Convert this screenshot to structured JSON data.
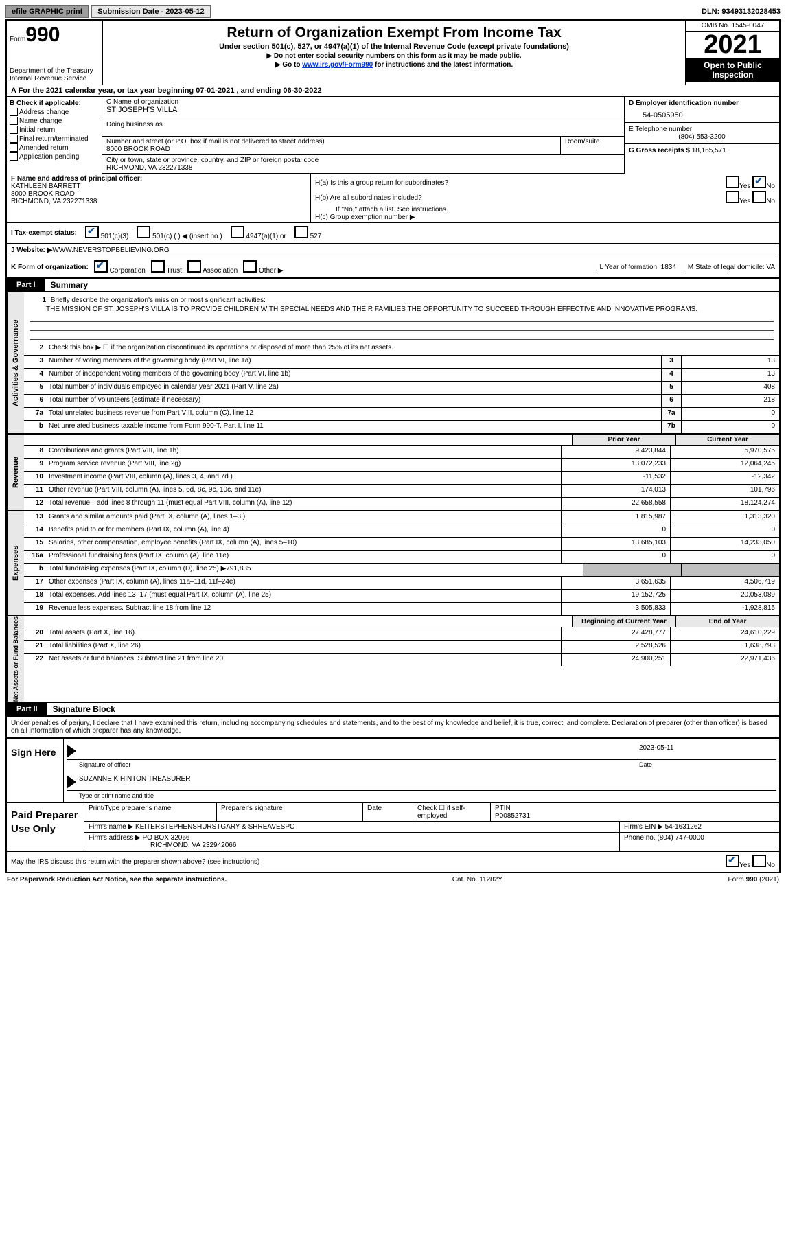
{
  "toolbar": {
    "efile": "efile GRAPHIC print",
    "submission_label": "Submission Date - 2023-05-12",
    "dln": "DLN: 93493132028453"
  },
  "header": {
    "form_prefix": "Form",
    "form_number": "990",
    "dept": "Department of the Treasury\nInternal Revenue Service",
    "title": "Return of Organization Exempt From Income Tax",
    "subtitle": "Under section 501(c), 527, or 4947(a)(1) of the Internal Revenue Code (except private foundations)",
    "instr1": "▶ Do not enter social security numbers on this form as it may be made public.",
    "instr2_pre": "▶ Go to ",
    "instr2_link": "www.irs.gov/Form990",
    "instr2_post": " for instructions and the latest information.",
    "omb": "OMB No. 1545-0047",
    "year": "2021",
    "open_pub": "Open to Public Inspection"
  },
  "row_a": "A For the 2021 calendar year, or tax year beginning 07-01-2021    , and ending 06-30-2022",
  "col_b": {
    "title": "B Check if applicable:",
    "items": [
      "Address change",
      "Name change",
      "Initial return",
      "Final return/terminated",
      "Amended return",
      "Application pending"
    ]
  },
  "col_c": {
    "name_label": "C Name of organization",
    "name": "ST JOSEPH'S VILLA",
    "dba_label": "Doing business as",
    "dba": "",
    "addr_label": "Number and street (or P.O. box if mail is not delivered to street address)",
    "addr": "8000 BROOK ROAD",
    "suite_label": "Room/suite",
    "city_label": "City or town, state or province, country, and ZIP or foreign postal code",
    "city": "RICHMOND, VA  232271338"
  },
  "col_d": {
    "ein_label": "D Employer identification number",
    "ein": "54-0505950",
    "tel_label": "E Telephone number",
    "tel": "(804) 553-3200",
    "gross_label": "G Gross receipts $ ",
    "gross": "18,165,571"
  },
  "row_f": {
    "label": "F Name and address of principal officer:",
    "name": "KATHLEEN BARRETT",
    "addr1": "8000 BROOK ROAD",
    "addr2": "RICHMOND, VA  232271338"
  },
  "row_h": {
    "ha": "H(a)  Is this a group return for subordinates?",
    "hb": "H(b)  Are all subordinates included?",
    "hb_note": "If \"No,\" attach a list. See instructions.",
    "hc": "H(c)  Group exemption number ▶",
    "yes": "Yes",
    "no": "No"
  },
  "row_i": {
    "label": "I   Tax-exempt status:",
    "opt1": "501(c)(3)",
    "opt2": "501(c) (  ) ◀ (insert no.)",
    "opt3": "4947(a)(1) or",
    "opt4": "527"
  },
  "row_j": {
    "label": "J   Website: ▶  ",
    "val": "WWW.NEVERSTOPBELIEVING.ORG"
  },
  "row_k": {
    "label": "K Form of organization:",
    "opts": [
      "Corporation",
      "Trust",
      "Association",
      "Other ▶"
    ],
    "l": "L Year of formation: 1834",
    "m": "M State of legal domicile: VA"
  },
  "part1": {
    "label": "Part I",
    "title": "Summary"
  },
  "mission": {
    "q": "Briefly describe the organization's mission or most significant activities:",
    "text": "THE MISSION OF ST. JOSEPH'S VILLA IS TO PROVIDE CHILDREN WITH SPECIAL NEEDS AND THEIR FAMILIES THE OPPORTUNITY TO SUCCEED THROUGH EFFECTIVE AND INNOVATIVE PROGRAMS."
  },
  "lines_gov": [
    {
      "n": "2",
      "desc": "Check this box ▶ ☐  if the organization discontinued its operations or disposed of more than 25% of its net assets."
    },
    {
      "n": "3",
      "desc": "Number of voting members of the governing body (Part VI, line 1a)",
      "box": "3",
      "val": "13"
    },
    {
      "n": "4",
      "desc": "Number of independent voting members of the governing body (Part VI, line 1b)",
      "box": "4",
      "val": "13"
    },
    {
      "n": "5",
      "desc": "Total number of individuals employed in calendar year 2021 (Part V, line 2a)",
      "box": "5",
      "val": "408"
    },
    {
      "n": "6",
      "desc": "Total number of volunteers (estimate if necessary)",
      "box": "6",
      "val": "218"
    },
    {
      "n": "7a",
      "desc": "Total unrelated business revenue from Part VIII, column (C), line 12",
      "box": "7a",
      "val": "0"
    },
    {
      "n": "b",
      "desc": "Net unrelated business taxable income from Form 990-T, Part I, line 11",
      "box": "7b",
      "val": "0"
    }
  ],
  "hdr_prior": "Prior Year",
  "hdr_curr": "Current Year",
  "lines_rev": [
    {
      "n": "8",
      "desc": "Contributions and grants (Part VIII, line 1h)",
      "p": "9,423,844",
      "c": "5,970,575"
    },
    {
      "n": "9",
      "desc": "Program service revenue (Part VIII, line 2g)",
      "p": "13,072,233",
      "c": "12,064,245"
    },
    {
      "n": "10",
      "desc": "Investment income (Part VIII, column (A), lines 3, 4, and 7d )",
      "p": "-11,532",
      "c": "-12,342"
    },
    {
      "n": "11",
      "desc": "Other revenue (Part VIII, column (A), lines 5, 6d, 8c, 9c, 10c, and 11e)",
      "p": "174,013",
      "c": "101,796"
    },
    {
      "n": "12",
      "desc": "Total revenue—add lines 8 through 11 (must equal Part VIII, column (A), line 12)",
      "p": "22,658,558",
      "c": "18,124,274"
    }
  ],
  "lines_exp": [
    {
      "n": "13",
      "desc": "Grants and similar amounts paid (Part IX, column (A), lines 1–3 )",
      "p": "1,815,987",
      "c": "1,313,320"
    },
    {
      "n": "14",
      "desc": "Benefits paid to or for members (Part IX, column (A), line 4)",
      "p": "0",
      "c": "0"
    },
    {
      "n": "15",
      "desc": "Salaries, other compensation, employee benefits (Part IX, column (A), lines 5–10)",
      "p": "13,685,103",
      "c": "14,233,050"
    },
    {
      "n": "16a",
      "desc": "Professional fundraising fees (Part IX, column (A), line 11e)",
      "p": "0",
      "c": "0"
    },
    {
      "n": "b",
      "desc": "Total fundraising expenses (Part IX, column (D), line 25) ▶791,835",
      "grey": true
    },
    {
      "n": "17",
      "desc": "Other expenses (Part IX, column (A), lines 11a–11d, 11f–24e)",
      "p": "3,651,635",
      "c": "4,506,719"
    },
    {
      "n": "18",
      "desc": "Total expenses. Add lines 13–17 (must equal Part IX, column (A), line 25)",
      "p": "19,152,725",
      "c": "20,053,089"
    },
    {
      "n": "19",
      "desc": "Revenue less expenses. Subtract line 18 from line 12",
      "p": "3,505,833",
      "c": "-1,928,815"
    }
  ],
  "hdr_beg": "Beginning of Current Year",
  "hdr_end": "End of Year",
  "lines_net": [
    {
      "n": "20",
      "desc": "Total assets (Part X, line 16)",
      "p": "27,428,777",
      "c": "24,610,229"
    },
    {
      "n": "21",
      "desc": "Total liabilities (Part X, line 26)",
      "p": "2,528,526",
      "c": "1,638,793"
    },
    {
      "n": "22",
      "desc": "Net assets or fund balances. Subtract line 21 from line 20",
      "p": "24,900,251",
      "c": "22,971,436"
    }
  ],
  "side_labels": {
    "gov": "Activities & Governance",
    "rev": "Revenue",
    "exp": "Expenses",
    "net": "Net Assets or Fund Balances"
  },
  "part2": {
    "label": "Part II",
    "title": "Signature Block"
  },
  "sig_text": "Under penalties of perjury, I declare that I have examined this return, including accompanying schedules and statements, and to the best of my knowledge and belief, it is true, correct, and complete. Declaration of preparer (other than officer) is based on all information of which preparer has any knowledge.",
  "sign": {
    "label": "Sign Here",
    "date": "2023-05-11",
    "sig_label": "Signature of officer",
    "date_label": "Date",
    "name": "SUZANNE K HINTON  TREASURER",
    "name_label": "Type or print name and title"
  },
  "prep": {
    "label": "Paid Preparer Use Only",
    "h1": "Print/Type preparer's name",
    "h2": "Preparer's signature",
    "h3": "Date",
    "h4": "Check ☐ if self-employed",
    "h5": "PTIN",
    "ptin": "P00852731",
    "firm_label": "Firm's name    ▶ ",
    "firm": "KEITERSTEPHENSHURSTGARY & SHREAVESPC",
    "ein_label": "Firm's EIN ▶ ",
    "ein": "54-1631262",
    "addr_label": "Firm's address ▶ ",
    "addr": "PO BOX 32066",
    "addr2": "RICHMOND, VA  232942066",
    "phone_label": "Phone no. ",
    "phone": "(804) 747-0000"
  },
  "may": {
    "text": "May the IRS discuss this return with the preparer shown above? (see instructions)",
    "yes": "Yes",
    "no": "No"
  },
  "footer": {
    "left": "For Paperwork Reduction Act Notice, see the separate instructions.",
    "mid": "Cat. No. 11282Y",
    "right": "Form 990 (2021)"
  }
}
